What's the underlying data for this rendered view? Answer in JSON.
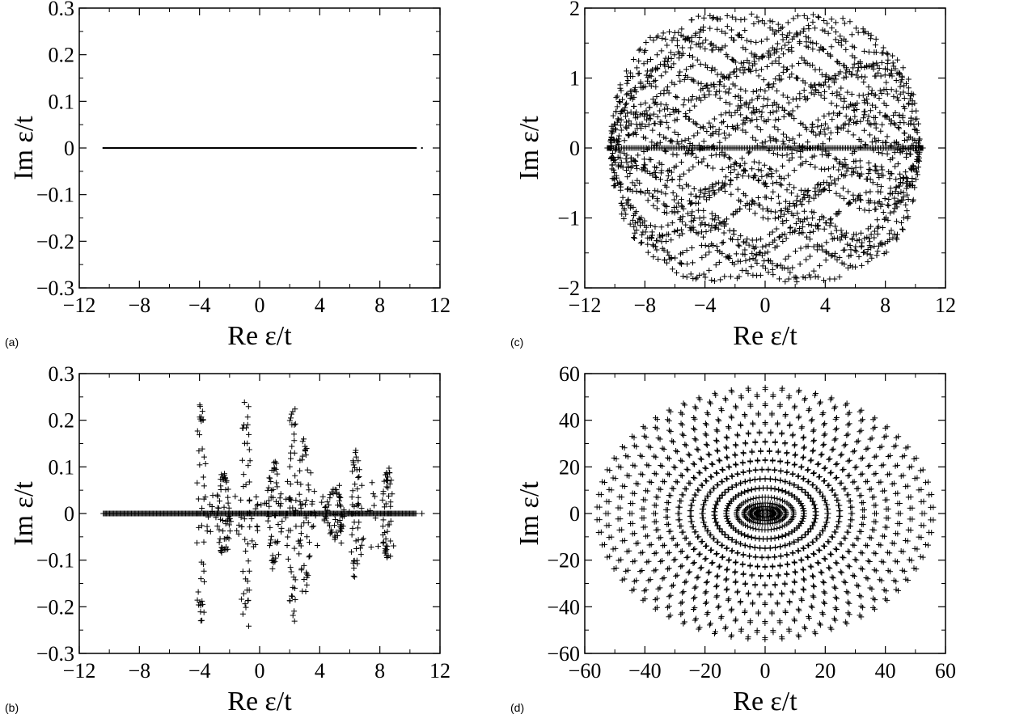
{
  "chart_data": [
    {
      "panel": "(a)",
      "type": "scatter",
      "xlabel": "Re ε/t",
      "ylabel": "Im ε/t",
      "xlim": [
        -12,
        12
      ],
      "ylim": [
        -0.3,
        0.3
      ],
      "xticks": [
        -12,
        -8,
        -4,
        0,
        4,
        8,
        12
      ],
      "xtick_labels": [
        "−12",
        "−8",
        "−4",
        "0",
        "4",
        "8",
        "12"
      ],
      "yticks": [
        -0.3,
        -0.2,
        -0.1,
        0,
        0.1,
        0.2,
        0.3
      ],
      "ytick_labels": [
        "−0.3",
        "−0.2",
        "−0.1",
        "0",
        "0.1",
        "0.2",
        "0.3"
      ],
      "marker": "dot",
      "points_description": "all eigenvalues real, dense along Im=0 from about -10.4 to 10.4, plus one isolated point near 10.8",
      "spectrum": {
        "real_min": -10.4,
        "real_max": 10.4,
        "isolated_real": [
          10.8
        ]
      }
    },
    {
      "panel": "(b)",
      "type": "scatter",
      "xlabel": "Re ε/t",
      "ylabel": "Im ε/t",
      "xlim": [
        -12,
        12
      ],
      "ylim": [
        -0.3,
        0.3
      ],
      "xticks": [
        -12,
        -8,
        -4,
        0,
        4,
        8,
        12
      ],
      "xtick_labels": [
        "−12",
        "−8",
        "−4",
        "0",
        "4",
        "8",
        "12"
      ],
      "yticks": [
        -0.3,
        -0.2,
        -0.1,
        0,
        0.1,
        0.2,
        0.3
      ],
      "ytick_labels": [
        "−0.3",
        "−0.2",
        "−0.1",
        "0",
        "0.1",
        "0.2",
        "0.3"
      ],
      "marker": "plus",
      "spectrum": {
        "real_min": -10.4,
        "real_max": 10.4,
        "isolated_real": [
          10.8
        ]
      },
      "loops": [
        {
          "x0": -3.9,
          "w": 0.6,
          "h": 0.235
        },
        {
          "x0": -0.9,
          "w": 0.7,
          "h": 0.22
        },
        {
          "x0": 2.2,
          "w": 0.6,
          "h": 0.215
        },
        {
          "x0": 1.0,
          "w": 0.9,
          "h": 0.11
        },
        {
          "x0": 3.0,
          "w": 0.9,
          "h": 0.16
        },
        {
          "x0": -2.4,
          "w": 0.8,
          "h": 0.085
        },
        {
          "x0": 6.4,
          "w": 0.6,
          "h": 0.125
        },
        {
          "x0": 8.5,
          "w": 0.5,
          "h": 0.095
        },
        {
          "x0": 5.0,
          "w": 1.2,
          "h": 0.05
        }
      ]
    },
    {
      "panel": "(c)",
      "type": "scatter",
      "xlabel": "Re ε/t",
      "ylabel": "Im ε/t",
      "xlim": [
        -12,
        12
      ],
      "ylim": [
        -2,
        2
      ],
      "xticks": [
        -12,
        -8,
        -4,
        0,
        4,
        8,
        12
      ],
      "xtick_labels": [
        "−12",
        "−8",
        "−4",
        "0",
        "4",
        "8",
        "12"
      ],
      "yticks": [
        -2,
        -1,
        0,
        1,
        2
      ],
      "ytick_labels": [
        "−2",
        "−1",
        "0",
        "1",
        "2"
      ],
      "marker": "plus",
      "envelope": {
        "rx": 10.3,
        "ry": 1.92
      },
      "real_axis_range": [
        -10.5,
        10.5
      ]
    },
    {
      "panel": "(d)",
      "type": "scatter",
      "xlabel": "Re ε/t",
      "ylabel": "Im ε/t",
      "xlim": [
        -60,
        60
      ],
      "ylim": [
        -60,
        60
      ],
      "xticks": [
        -60,
        -40,
        -20,
        0,
        20,
        40,
        60
      ],
      "xtick_labels": [
        "−60",
        "−40",
        "−20",
        "0",
        "20",
        "40",
        "60"
      ],
      "yticks": [
        -60,
        -40,
        -20,
        0,
        20,
        40,
        60
      ],
      "ytick_labels": [
        "−60",
        "−40",
        "−20",
        "0",
        "20",
        "40",
        "60"
      ],
      "marker": "plus",
      "rings": [
        {
          "rx": 3,
          "ry": 1.5,
          "n": 40
        },
        {
          "rx": 5,
          "ry": 3,
          "n": 46
        },
        {
          "rx": 7,
          "ry": 4.5,
          "n": 52
        },
        {
          "rx": 9.5,
          "ry": 7,
          "n": 58
        },
        {
          "rx": 13,
          "ry": 11,
          "n": 62
        },
        {
          "rx": 17,
          "ry": 15,
          "n": 62
        },
        {
          "rx": 21,
          "ry": 19,
          "n": 62
        },
        {
          "rx": 25,
          "ry": 23,
          "n": 62
        },
        {
          "rx": 29,
          "ry": 27,
          "n": 62
        },
        {
          "rx": 33,
          "ry": 31,
          "n": 62
        },
        {
          "rx": 37,
          "ry": 35,
          "n": 62
        },
        {
          "rx": 41,
          "ry": 39,
          "n": 62
        },
        {
          "rx": 45,
          "ry": 43,
          "n": 62
        },
        {
          "rx": 49,
          "ry": 47,
          "n": 62
        },
        {
          "rx": 53,
          "ry": 51,
          "n": 62
        },
        {
          "rx": 56,
          "ry": 54,
          "n": 62
        }
      ]
    }
  ]
}
